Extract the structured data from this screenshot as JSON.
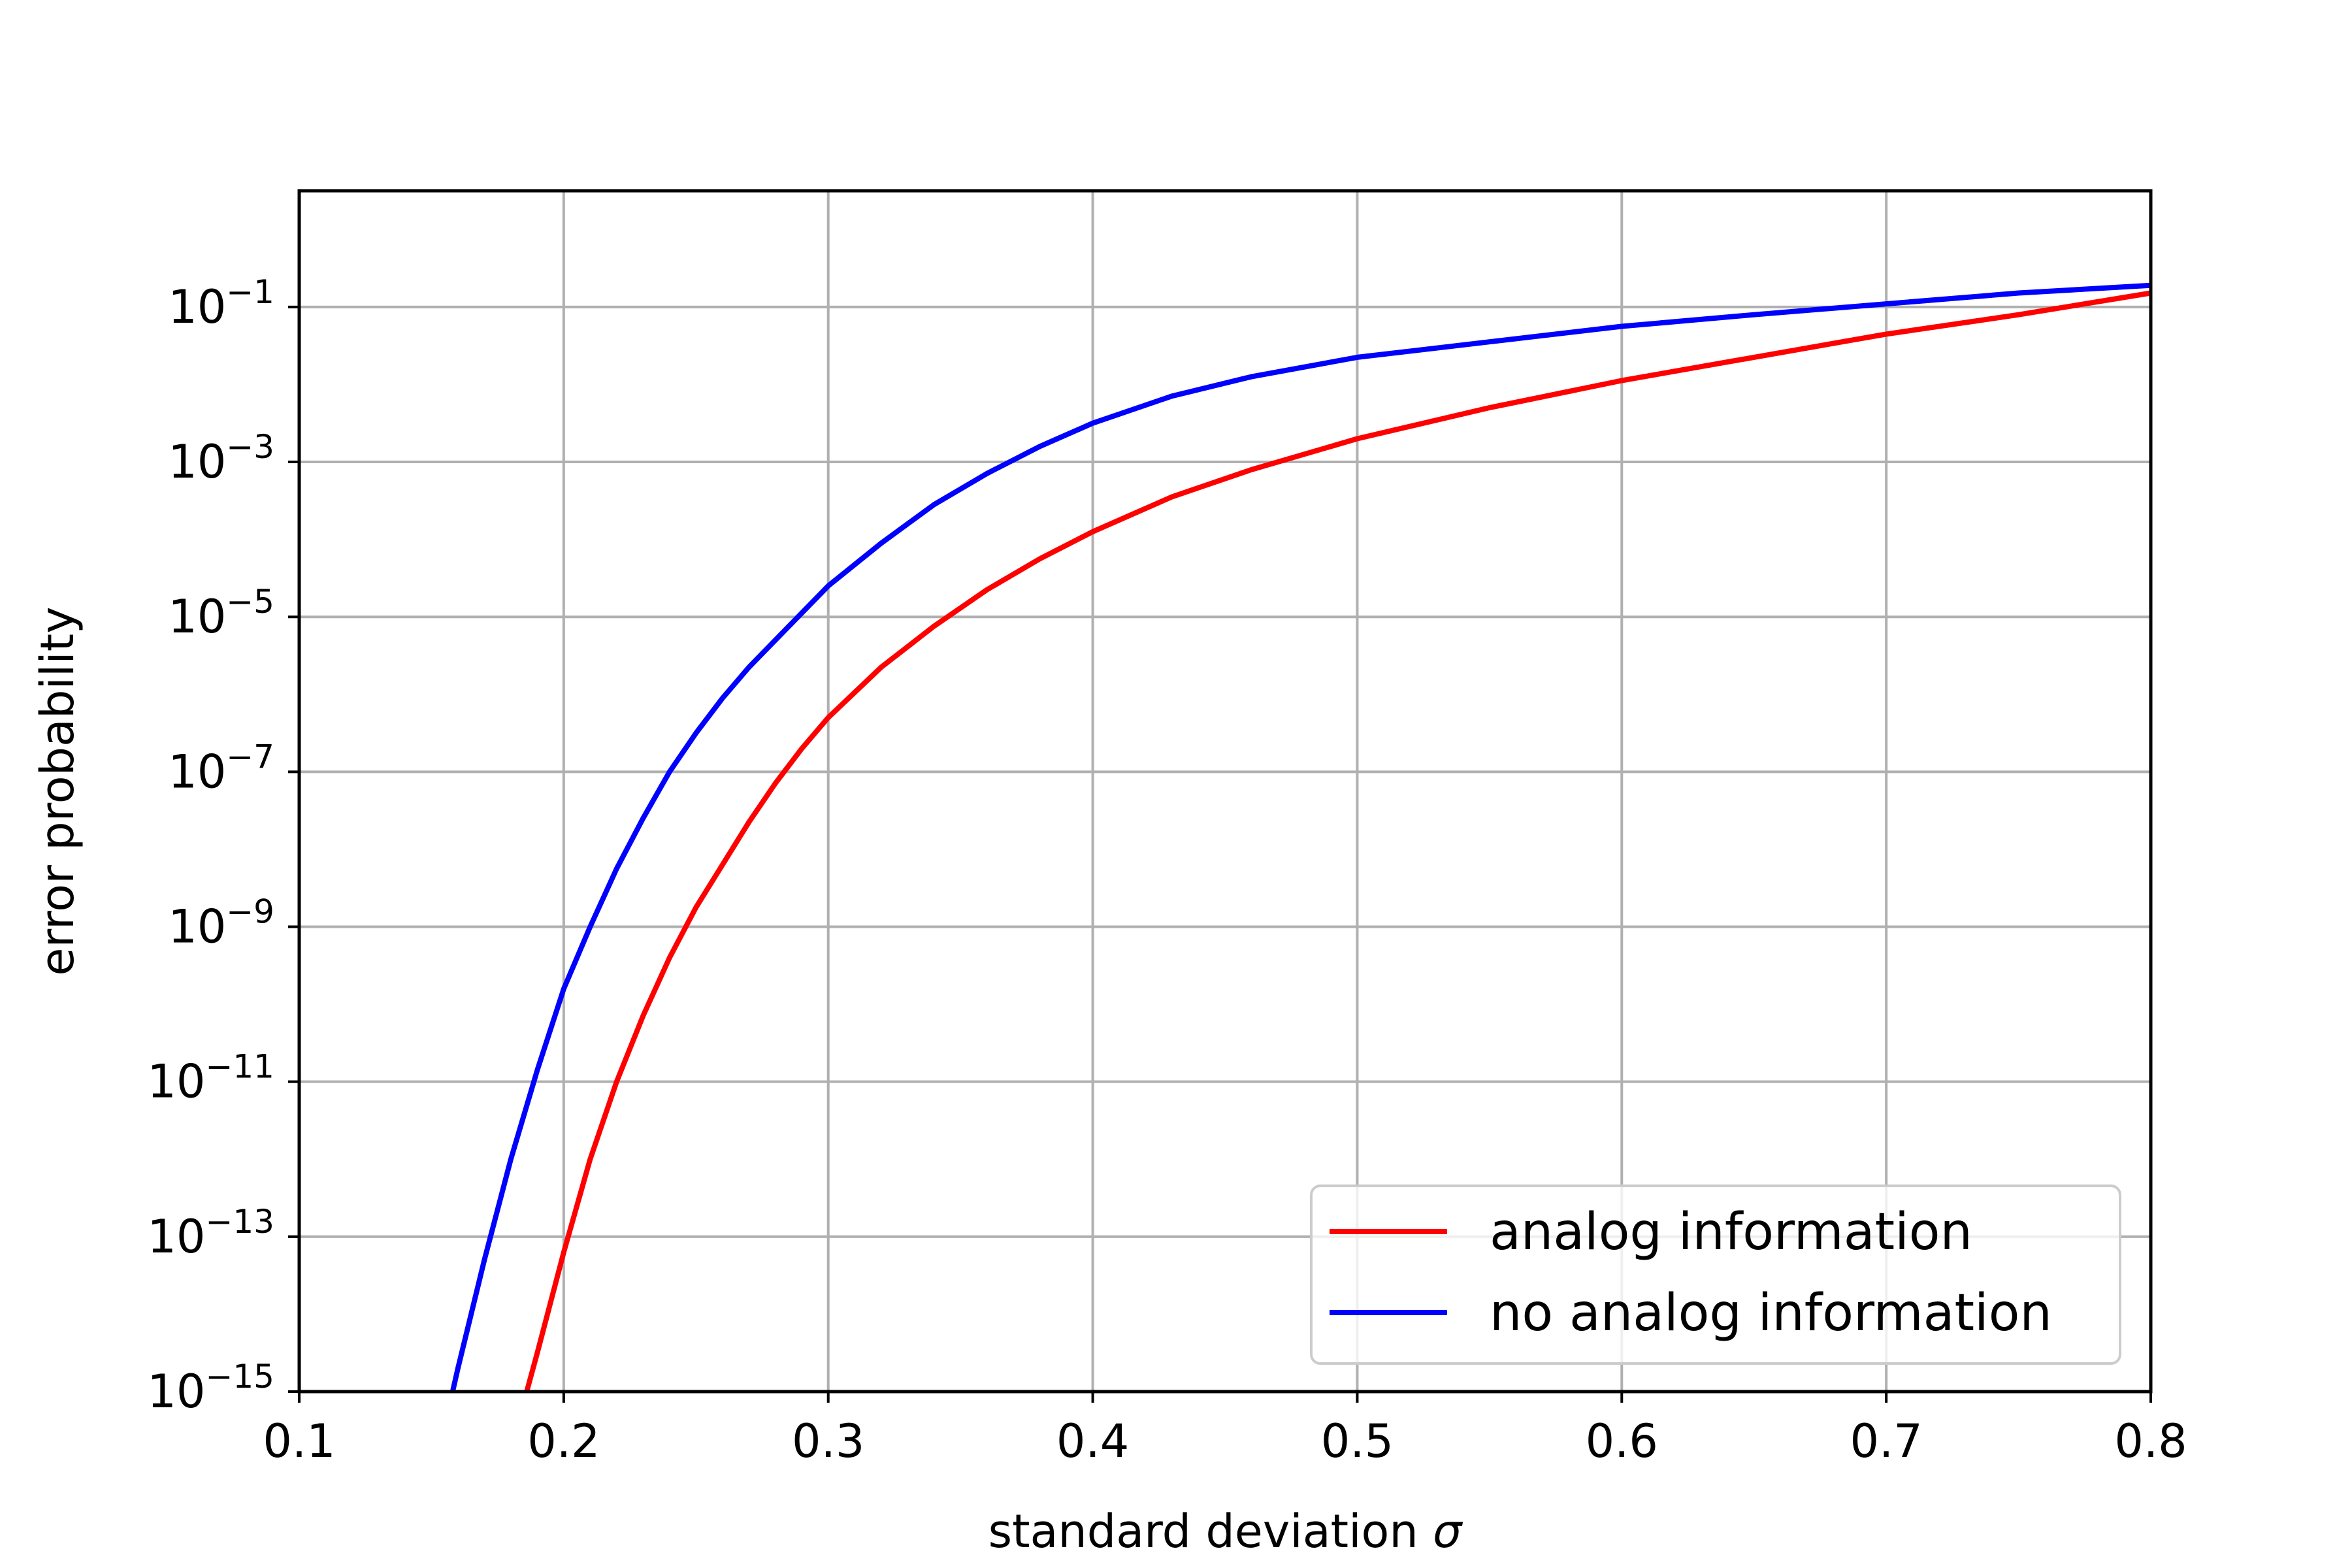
{
  "chart_data": {
    "type": "line",
    "title": "",
    "xlabel": "standard deviation",
    "xlabel_symbol": "σ",
    "ylabel": "error probability",
    "xlim": [
      0.1,
      0.8
    ],
    "ylim_exponent": [
      -15,
      0.5
    ],
    "y_scale": "log",
    "grid": true,
    "legend_position": "lower-right",
    "x_ticks": [
      "0.1",
      "0.2",
      "0.3",
      "0.4",
      "0.5",
      "0.6",
      "0.7",
      "0.8"
    ],
    "y_ticks": [
      {
        "base": "10",
        "exp": "−1",
        "value": -1
      },
      {
        "base": "10",
        "exp": "−3",
        "value": -3
      },
      {
        "base": "10",
        "exp": "−5",
        "value": -5
      },
      {
        "base": "10",
        "exp": "−7",
        "value": -7
      },
      {
        "base": "10",
        "exp": "−9",
        "value": -9
      },
      {
        "base": "10",
        "exp": "−11",
        "value": -11
      },
      {
        "base": "10",
        "exp": "−13",
        "value": -13
      },
      {
        "base": "10",
        "exp": "−15",
        "value": -15
      }
    ],
    "series": [
      {
        "name": "analog information",
        "color": "#ff0000",
        "x": [
          0.186,
          0.19,
          0.2,
          0.21,
          0.22,
          0.23,
          0.24,
          0.25,
          0.26,
          0.27,
          0.28,
          0.29,
          0.3,
          0.32,
          0.34,
          0.36,
          0.38,
          0.4,
          0.43,
          0.46,
          0.5,
          0.55,
          0.6,
          0.65,
          0.7,
          0.75,
          0.8
        ],
        "log10_y": [
          -15.0,
          -14.5,
          -13.2,
          -12.0,
          -11.0,
          -10.15,
          -9.4,
          -8.75,
          -8.2,
          -7.65,
          -7.15,
          -6.7,
          -6.3,
          -5.65,
          -5.12,
          -4.65,
          -4.25,
          -3.9,
          -3.45,
          -3.1,
          -2.7,
          -2.3,
          -1.95,
          -1.65,
          -1.35,
          -1.1,
          -0.82
        ]
      },
      {
        "name": "no analog information",
        "color": "#0000ff",
        "x": [
          0.158,
          0.16,
          0.17,
          0.18,
          0.19,
          0.2,
          0.21,
          0.22,
          0.23,
          0.24,
          0.25,
          0.26,
          0.27,
          0.28,
          0.29,
          0.3,
          0.32,
          0.34,
          0.36,
          0.38,
          0.4,
          0.43,
          0.46,
          0.5,
          0.55,
          0.6,
          0.65,
          0.7,
          0.75,
          0.8
        ],
        "log10_y": [
          -15.0,
          -14.7,
          -13.3,
          -12.0,
          -10.85,
          -9.8,
          -9.0,
          -8.25,
          -7.6,
          -7.0,
          -6.5,
          -6.05,
          -5.65,
          -5.3,
          -4.95,
          -4.6,
          -4.05,
          -3.55,
          -3.15,
          -2.8,
          -2.5,
          -2.15,
          -1.9,
          -1.65,
          -1.45,
          -1.25,
          -1.1,
          -0.96,
          -0.82,
          -0.72
        ]
      }
    ]
  }
}
